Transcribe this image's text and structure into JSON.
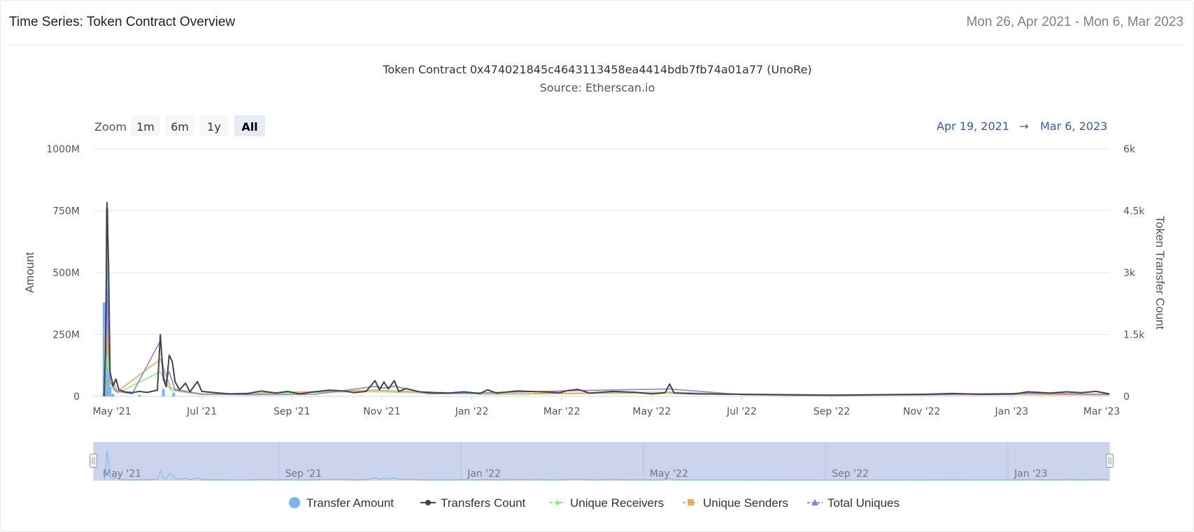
{
  "header": {
    "title": "Time Series: Token Contract Overview",
    "date_range": "Mon 26, Apr 2021 - Mon 6, Mar 2023"
  },
  "zoom": {
    "label": "Zoom",
    "buttons": [
      "1m",
      "6m",
      "1y",
      "All"
    ],
    "selected": "All"
  },
  "range_selector": {
    "from": "Apr 19, 2021",
    "arrow": "→",
    "to": "Mar 6, 2023"
  },
  "navigator": {
    "labels": [
      "May '21",
      "Sep '21",
      "Jan '22",
      "May '22",
      "Sep '22",
      "Jan '23"
    ]
  },
  "colors": {
    "transfer_amount": "#7cb5ec",
    "transfers_count": "#434348",
    "unique_receivers": "#90ed7d",
    "unique_senders": "#f7a35c",
    "total_uniques": "#8085e9"
  },
  "chart_data": {
    "type": "line",
    "title": "Token Contract 0x474021845c4643113458ea4414bdb7fb74a01a77 (UnoRe)",
    "subtitle": "Source: Etherscan.io",
    "x_axis": {
      "ticks": [
        "May '21",
        "Jul '21",
        "Sep '21",
        "Nov '21",
        "Jan '22",
        "Mar '22",
        "May '22",
        "Jul '22",
        "Sep '22",
        "Nov '22",
        "Jan '23",
        "Mar '23"
      ],
      "range": [
        "2021-04-19",
        "2023-03-06"
      ]
    },
    "y_left": {
      "title": "Amount",
      "ticks": [
        "0",
        "250M",
        "500M",
        "750M",
        "1000M"
      ],
      "range": [
        0,
        1000000000
      ]
    },
    "y_right": {
      "title": "Token Transfer Count",
      "ticks": [
        "0",
        "1.5k",
        "3k",
        "4.5k",
        "6k"
      ],
      "range": [
        0,
        6000
      ]
    },
    "legend": {
      "position": "bottom"
    },
    "grid": true,
    "series": [
      {
        "name": "Transfer Amount",
        "kind": "column",
        "axis": "left",
        "points": [
          [
            "2021-04-26",
            380000000
          ],
          [
            "2021-04-27",
            150000000
          ],
          [
            "2021-04-28",
            760000000
          ],
          [
            "2021-04-29",
            120000000
          ],
          [
            "2021-04-30",
            40000000
          ],
          [
            "2021-05-02",
            10000000
          ],
          [
            "2021-05-20",
            6000000
          ],
          [
            "2021-06-05",
            30000000
          ],
          [
            "2021-06-12",
            15000000
          ]
        ]
      },
      {
        "name": "Transfers Count",
        "kind": "line",
        "axis": "right",
        "points": [
          [
            "2021-04-26",
            0
          ],
          [
            "2021-04-27",
            1100
          ],
          [
            "2021-04-28",
            4700
          ],
          [
            "2021-04-29",
            3200
          ],
          [
            "2021-04-30",
            600
          ],
          [
            "2021-05-02",
            250
          ],
          [
            "2021-05-04",
            420
          ],
          [
            "2021-05-06",
            160
          ],
          [
            "2021-05-10",
            110
          ],
          [
            "2021-05-15",
            90
          ],
          [
            "2021-05-20",
            120
          ],
          [
            "2021-05-25",
            95
          ],
          [
            "2021-06-01",
            150
          ],
          [
            "2021-06-03",
            1500
          ],
          [
            "2021-06-05",
            420
          ],
          [
            "2021-06-07",
            230
          ],
          [
            "2021-06-09",
            1000
          ],
          [
            "2021-06-11",
            850
          ],
          [
            "2021-06-13",
            350
          ],
          [
            "2021-06-16",
            160
          ],
          [
            "2021-06-20",
            320
          ],
          [
            "2021-06-23",
            110
          ],
          [
            "2021-06-28",
            360
          ],
          [
            "2021-07-01",
            120
          ],
          [
            "2021-07-10",
            90
          ],
          [
            "2021-07-20",
            60
          ],
          [
            "2021-08-01",
            70
          ],
          [
            "2021-08-10",
            130
          ],
          [
            "2021-08-20",
            80
          ],
          [
            "2021-08-28",
            120
          ],
          [
            "2021-09-05",
            60
          ],
          [
            "2021-09-15",
            110
          ],
          [
            "2021-09-25",
            150
          ],
          [
            "2021-10-05",
            130
          ],
          [
            "2021-10-12",
            90
          ],
          [
            "2021-10-20",
            120
          ],
          [
            "2021-10-26",
            380
          ],
          [
            "2021-10-29",
            160
          ],
          [
            "2021-11-01",
            350
          ],
          [
            "2021-11-04",
            180
          ],
          [
            "2021-11-08",
            380
          ],
          [
            "2021-11-11",
            120
          ],
          [
            "2021-11-16",
            190
          ],
          [
            "2021-11-25",
            110
          ],
          [
            "2021-12-05",
            90
          ],
          [
            "2021-12-15",
            80
          ],
          [
            "2021-12-25",
            110
          ],
          [
            "2022-01-05",
            70
          ],
          [
            "2022-01-10",
            160
          ],
          [
            "2022-01-16",
            80
          ],
          [
            "2022-01-30",
            130
          ],
          [
            "2022-02-15",
            110
          ],
          [
            "2022-02-28",
            90
          ],
          [
            "2022-03-05",
            140
          ],
          [
            "2022-03-12",
            170
          ],
          [
            "2022-03-20",
            80
          ],
          [
            "2022-04-05",
            120
          ],
          [
            "2022-04-20",
            100
          ],
          [
            "2022-05-01",
            60
          ],
          [
            "2022-05-10",
            90
          ],
          [
            "2022-05-13",
            300
          ],
          [
            "2022-05-16",
            80
          ],
          [
            "2022-06-01",
            60
          ],
          [
            "2022-07-01",
            50
          ],
          [
            "2022-08-01",
            40
          ],
          [
            "2022-09-01",
            30
          ],
          [
            "2022-10-01",
            40
          ],
          [
            "2022-11-01",
            50
          ],
          [
            "2022-11-20",
            70
          ],
          [
            "2022-12-10",
            50
          ],
          [
            "2023-01-01",
            60
          ],
          [
            "2023-01-10",
            110
          ],
          [
            "2023-01-25",
            80
          ],
          [
            "2023-02-05",
            110
          ],
          [
            "2023-02-15",
            90
          ],
          [
            "2023-02-25",
            120
          ],
          [
            "2023-03-06",
            60
          ]
        ]
      },
      {
        "name": "Unique Receivers",
        "kind": "line",
        "axis": "right",
        "points": [
          [
            "2021-04-26",
            0
          ],
          [
            "2021-04-28",
            1000
          ],
          [
            "2021-04-30",
            250
          ],
          [
            "2021-05-05",
            80
          ],
          [
            "2021-06-03",
            600
          ],
          [
            "2021-06-10",
            150
          ],
          [
            "2021-07-01",
            40
          ],
          [
            "2021-10-26",
            120
          ],
          [
            "2021-11-08",
            100
          ],
          [
            "2022-01-10",
            50
          ],
          [
            "2022-05-13",
            80
          ],
          [
            "2022-08-01",
            20
          ],
          [
            "2023-01-10",
            40
          ],
          [
            "2023-03-06",
            30
          ]
        ]
      },
      {
        "name": "Unique Senders",
        "kind": "line",
        "axis": "right",
        "points": [
          [
            "2021-04-26",
            0
          ],
          [
            "2021-04-28",
            1600
          ],
          [
            "2021-04-30",
            500
          ],
          [
            "2021-05-05",
            120
          ],
          [
            "2021-06-03",
            900
          ],
          [
            "2021-06-10",
            200
          ],
          [
            "2021-07-01",
            50
          ],
          [
            "2021-10-26",
            150
          ],
          [
            "2021-11-08",
            130
          ],
          [
            "2022-01-10",
            60
          ],
          [
            "2022-05-13",
            100
          ],
          [
            "2022-08-01",
            25
          ],
          [
            "2023-01-10",
            50
          ],
          [
            "2023-03-06",
            40
          ]
        ]
      },
      {
        "name": "Total Uniques",
        "kind": "line",
        "axis": "right",
        "points": [
          [
            "2021-04-26",
            0
          ],
          [
            "2021-04-27",
            900
          ],
          [
            "2021-04-28",
            2600
          ],
          [
            "2021-04-29",
            1500
          ],
          [
            "2021-04-30",
            350
          ],
          [
            "2021-05-04",
            130
          ],
          [
            "2021-05-15",
            60
          ],
          [
            "2021-06-03",
            1350
          ],
          [
            "2021-06-06",
            300
          ],
          [
            "2021-06-09",
            600
          ],
          [
            "2021-06-13",
            150
          ],
          [
            "2021-07-01",
            60
          ],
          [
            "2021-08-01",
            40
          ],
          [
            "2021-09-15",
            50
          ],
          [
            "2021-10-26",
            240
          ],
          [
            "2021-11-01",
            200
          ],
          [
            "2021-11-08",
            250
          ],
          [
            "2021-12-01",
            60
          ],
          [
            "2022-01-10",
            90
          ],
          [
            "2022-03-12",
            140
          ],
          [
            "2022-05-13",
            180
          ],
          [
            "2022-07-01",
            40
          ],
          [
            "2022-09-01",
            20
          ],
          [
            "2022-11-01",
            40
          ],
          [
            "2023-01-10",
            80
          ],
          [
            "2023-02-15",
            60
          ],
          [
            "2023-03-06",
            50
          ]
        ]
      }
    ]
  }
}
